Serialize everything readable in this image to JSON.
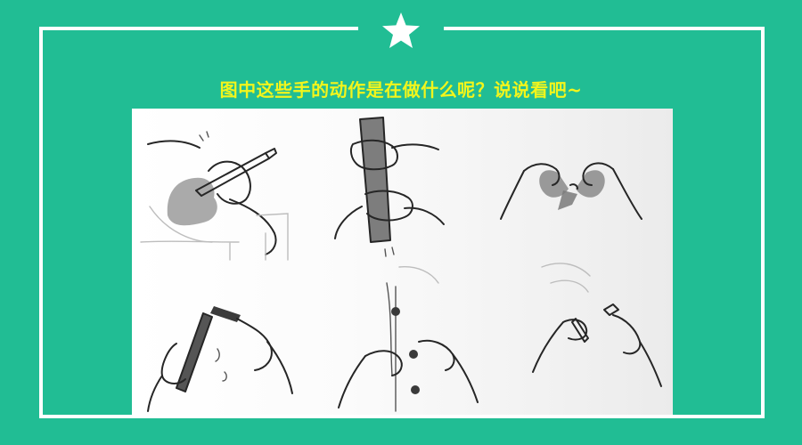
{
  "title": "图中这些手的动作是在做什么呢？说说看吧~",
  "colors": {
    "background": "#21bd94",
    "frame": "#ffffff",
    "title": "#f2f51c"
  },
  "icons": {
    "header": "star-icon"
  }
}
